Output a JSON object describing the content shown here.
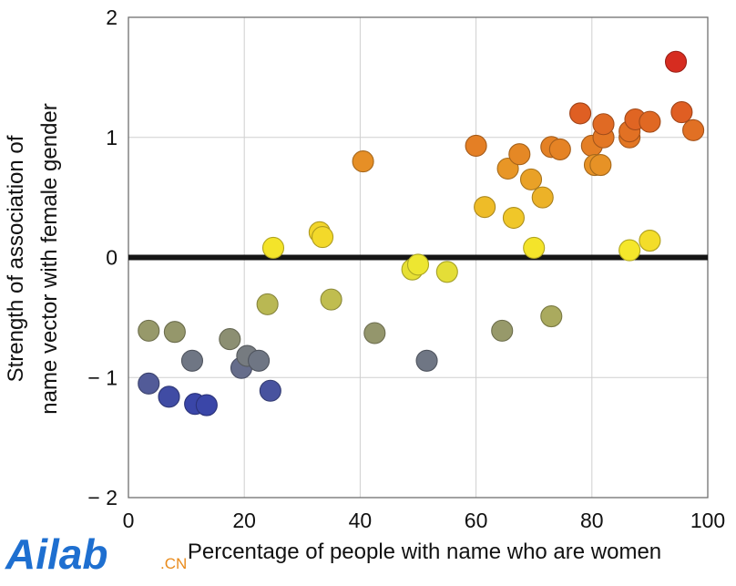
{
  "chart_data": {
    "type": "scatter",
    "xlabel": "Percentage of people with name who are women",
    "ylabel_lines": [
      "Strength of association of",
      "name vector with female gender"
    ],
    "xlim": [
      0,
      100
    ],
    "ylim": [
      -2,
      2
    ],
    "xticks": [
      0,
      20,
      40,
      60,
      80,
      100
    ],
    "yticks": [
      -2,
      -1,
      0,
      1,
      2
    ],
    "ytick_labels": [
      "− 2",
      "− 1",
      "0",
      "1",
      "2"
    ],
    "grid": true,
    "reference_line_y": 0,
    "color_scale": {
      "low": "#3a46a8",
      "mid": "#f6ee2b",
      "high": "#d62a20"
    },
    "points": [
      {
        "x": 3.5,
        "y": -1.05
      },
      {
        "x": 7,
        "y": -1.16
      },
      {
        "x": 11.5,
        "y": -1.22
      },
      {
        "x": 13.5,
        "y": -1.23
      },
      {
        "x": 19.5,
        "y": -0.92
      },
      {
        "x": 24.5,
        "y": -1.11
      },
      {
        "x": 11,
        "y": -0.86
      },
      {
        "x": 20.5,
        "y": -0.82
      },
      {
        "x": 22.5,
        "y": -0.86
      },
      {
        "x": 51.5,
        "y": -0.86
      },
      {
        "x": 3.5,
        "y": -0.61
      },
      {
        "x": 8,
        "y": -0.62
      },
      {
        "x": 17.5,
        "y": -0.68
      },
      {
        "x": 42.5,
        "y": -0.63
      },
      {
        "x": 64.5,
        "y": -0.61
      },
      {
        "x": 73,
        "y": -0.49
      },
      {
        "x": 24,
        "y": -0.39
      },
      {
        "x": 35,
        "y": -0.35
      },
      {
        "x": 49,
        "y": -0.1
      },
      {
        "x": 50,
        "y": -0.06
      },
      {
        "x": 55,
        "y": -0.12
      },
      {
        "x": 25,
        "y": 0.08
      },
      {
        "x": 33,
        "y": 0.21
      },
      {
        "x": 33.5,
        "y": 0.17
      },
      {
        "x": 70,
        "y": 0.08
      },
      {
        "x": 86.5,
        "y": 0.06
      },
      {
        "x": 90,
        "y": 0.14
      },
      {
        "x": 40.5,
        "y": 0.8
      },
      {
        "x": 60,
        "y": 0.93
      },
      {
        "x": 61.5,
        "y": 0.42
      },
      {
        "x": 65.5,
        "y": 0.74
      },
      {
        "x": 66.5,
        "y": 0.33
      },
      {
        "x": 67.5,
        "y": 0.86
      },
      {
        "x": 69.5,
        "y": 0.65
      },
      {
        "x": 71.5,
        "y": 0.5
      },
      {
        "x": 73,
        "y": 0.92
      },
      {
        "x": 74.5,
        "y": 0.9
      },
      {
        "x": 78,
        "y": 1.2
      },
      {
        "x": 80,
        "y": 0.93
      },
      {
        "x": 80.5,
        "y": 0.77
      },
      {
        "x": 81.5,
        "y": 0.77
      },
      {
        "x": 82,
        "y": 1.0
      },
      {
        "x": 82,
        "y": 1.11
      },
      {
        "x": 86.5,
        "y": 1.0
      },
      {
        "x": 86.5,
        "y": 1.05
      },
      {
        "x": 87.5,
        "y": 1.15
      },
      {
        "x": 90,
        "y": 1.13
      },
      {
        "x": 94.5,
        "y": 1.63
      },
      {
        "x": 95.5,
        "y": 1.21
      },
      {
        "x": 97.5,
        "y": 1.06
      }
    ]
  },
  "watermark": {
    "main": "Ailab",
    "suffix": ".CN"
  }
}
